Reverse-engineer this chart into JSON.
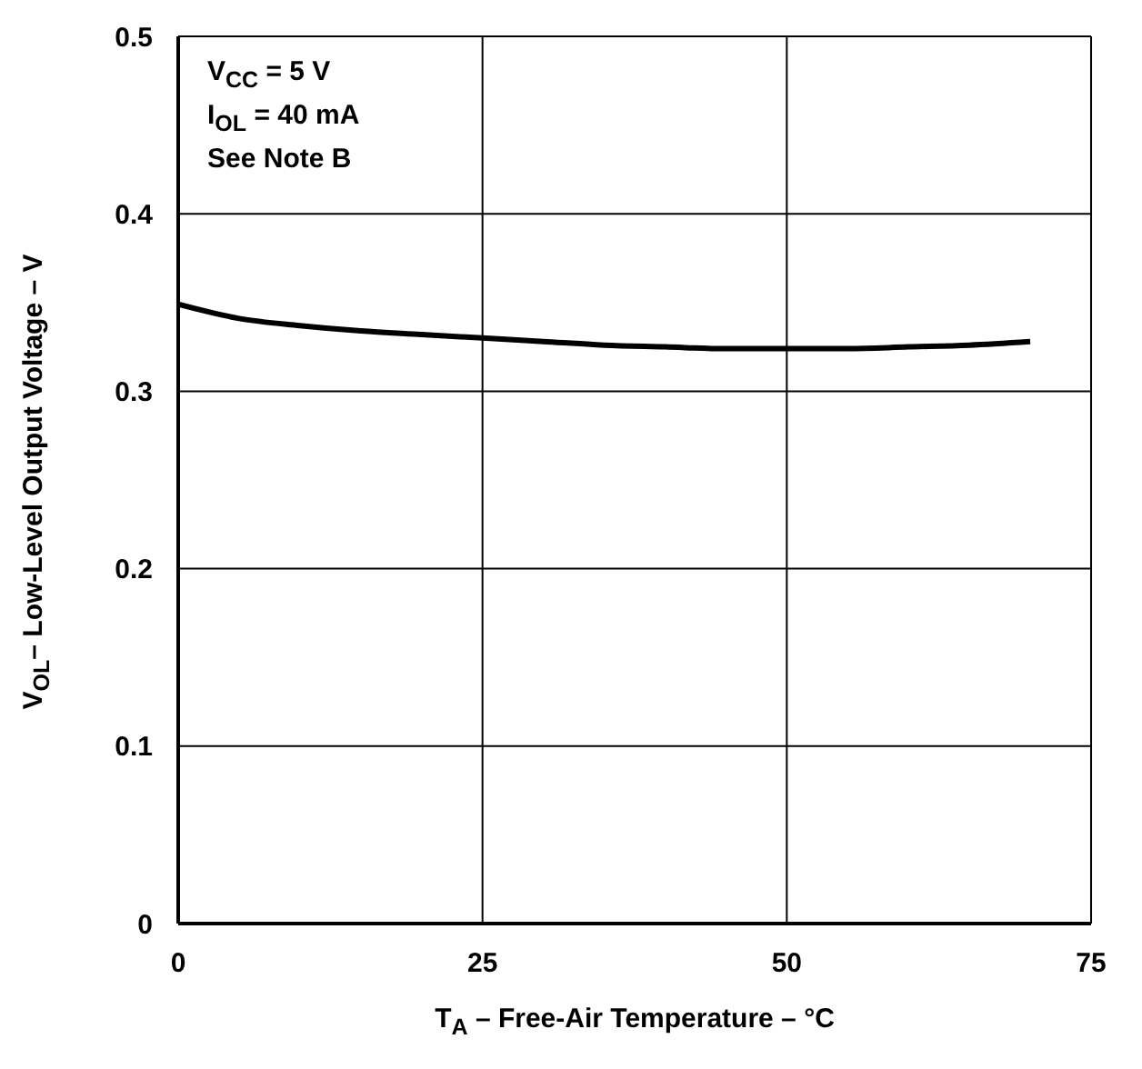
{
  "chart_data": {
    "type": "line",
    "xlabel": "T$_{A}$ – Free-Air Temperature – °C",
    "ylabel": "V$_{OL}$– Low-Level Output Voltage – V",
    "annotations": [
      "V$_{CC}$ = 5 V",
      "I$_{OL}$ = 40 mA",
      "See Note B"
    ],
    "x": [
      0,
      5,
      10,
      15,
      20,
      25,
      30,
      35,
      40,
      45,
      50,
      55,
      60,
      65,
      70
    ],
    "series": [
      {
        "color": "#000000",
        "values": [
          0.349,
          0.341,
          0.337,
          0.334,
          0.332,
          0.33,
          0.328,
          0.326,
          0.325,
          0.324,
          0.324,
          0.324,
          0.325,
          0.326,
          0.328
        ]
      }
    ],
    "xlim": [
      0,
      75
    ],
    "xticks": [
      0,
      25,
      50,
      75
    ],
    "ylim": [
      0,
      0.5
    ],
    "yticks": [
      0,
      0.1,
      0.2,
      0.3,
      0.4,
      0.5
    ],
    "grid": true,
    "marker": "none",
    "line_style": "solid"
  }
}
